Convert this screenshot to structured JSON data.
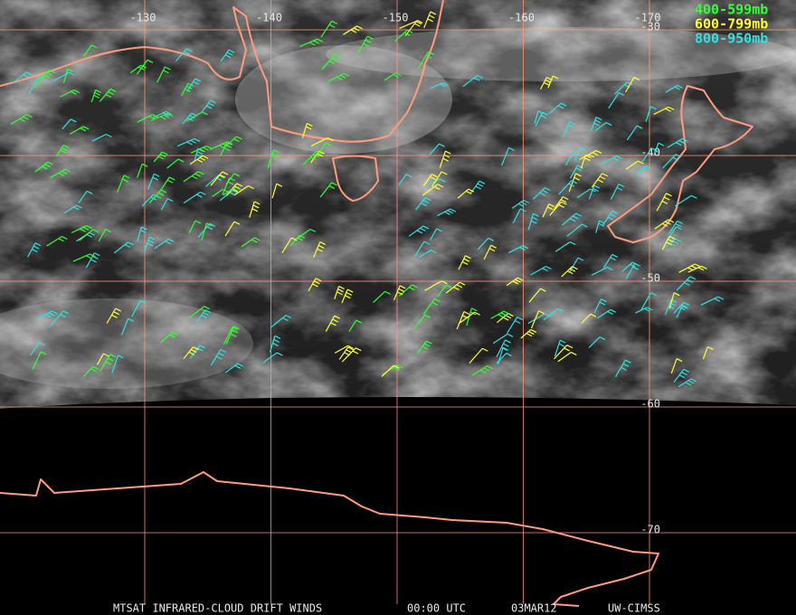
{
  "map": {
    "longitude_labels": [
      -130,
      -140,
      -150,
      -160,
      -170
    ],
    "latitude_labels": [
      -30,
      -40,
      -50,
      -60,
      -70
    ],
    "legend": [
      {
        "label": "400-599mb",
        "color": "#33ff33"
      },
      {
        "label": "600-799mb",
        "color": "#ffff33"
      },
      {
        "label": "800-950mb",
        "color": "#33e0e0"
      }
    ],
    "footer": {
      "product": "MTSAT INFRARED-CLOUD DRIFT WINDS",
      "time": "00:00 UTC",
      "date": "03MAR12",
      "source": "UW-CIMSS"
    }
  }
}
